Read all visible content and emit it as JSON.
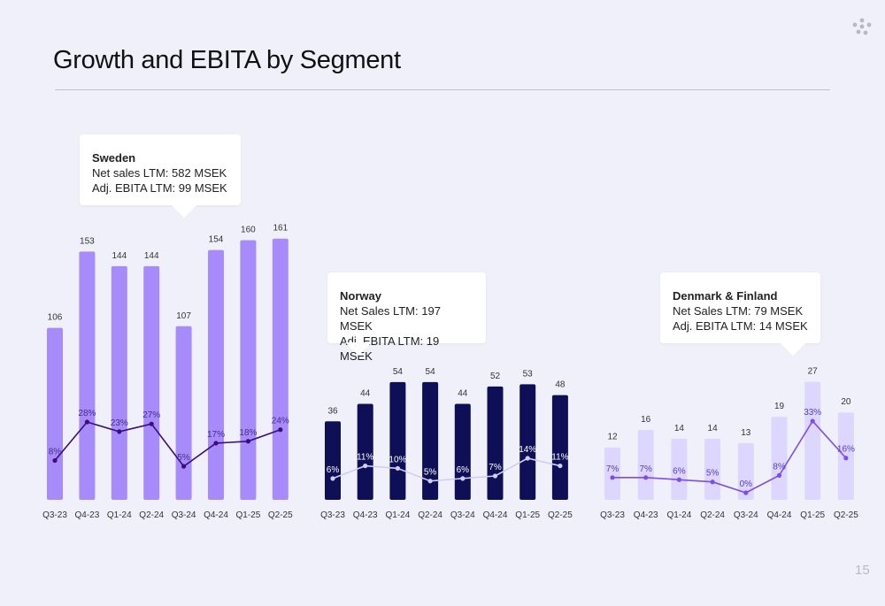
{
  "page": {
    "title": "Growth and EBITA by Segment",
    "page_number": "15"
  },
  "chart_data": [
    {
      "type": "bar",
      "name": "Sweden",
      "callout": {
        "title": "Sweden",
        "line1": "Net sales LTM: 582 MSEK",
        "line2": "Adj. EBITA LTM: 99 MSEK"
      },
      "categories": [
        "Q3-23",
        "Q4-23",
        "Q1-24",
        "Q2-24",
        "Q3-24",
        "Q4-24",
        "Q1-25",
        "Q2-25"
      ],
      "values": [
        106,
        153,
        144,
        144,
        107,
        154,
        160,
        161
      ],
      "line_values": [
        8,
        28,
        23,
        27,
        5,
        17,
        18,
        24
      ],
      "line_labels": [
        "8%",
        "28%",
        "23%",
        "27%",
        "5%",
        "17%",
        "18%",
        "24%"
      ],
      "colors": {
        "bar": "#a78bfa",
        "line": "#3b0f7a",
        "pct_text": "#4a2a8a"
      }
    },
    {
      "type": "bar",
      "name": "Norway",
      "callout": {
        "title": "Norway",
        "line1": "Net Sales LTM: 197 MSEK",
        "line2": "Adj. EBITA LTM: 19 MSEK"
      },
      "categories": [
        "Q3-23",
        "Q4-23",
        "Q1-24",
        "Q2-24",
        "Q3-24",
        "Q4-24",
        "Q1-25",
        "Q2-25"
      ],
      "values": [
        36,
        44,
        54,
        54,
        44,
        52,
        53,
        48
      ],
      "line_values": [
        6,
        11,
        10,
        5,
        6,
        7,
        14,
        11
      ],
      "line_labels": [
        "6%",
        "11%",
        "10%",
        "5%",
        "6%",
        "7%",
        "14%",
        "11%"
      ],
      "colors": {
        "bar": "#0f0f57",
        "line": "#d3ccf5",
        "pct_text": "#ffffff"
      }
    },
    {
      "type": "bar",
      "name": "Denmark & Finland",
      "callout": {
        "title": "Denmark & Finland",
        "line1": "Net Sales LTM: 79 MSEK",
        "line2": "Adj. EBITA LTM: 14 MSEK"
      },
      "categories": [
        "Q3-23",
        "Q4-23",
        "Q1-24",
        "Q2-24",
        "Q3-24",
        "Q4-24",
        "Q1-25",
        "Q2-25"
      ],
      "values": [
        12,
        16,
        14,
        14,
        13,
        19,
        27,
        20
      ],
      "line_values": [
        7,
        7,
        6,
        5,
        0,
        8,
        33,
        16
      ],
      "line_labels": [
        "7%",
        "7%",
        "6%",
        "5%",
        "0%",
        "8%",
        "33%",
        "16%"
      ],
      "colors": {
        "bar": "#ddd6fe",
        "line": "#7e4ee8",
        "pct_text": "#5b3cb8"
      }
    }
  ]
}
